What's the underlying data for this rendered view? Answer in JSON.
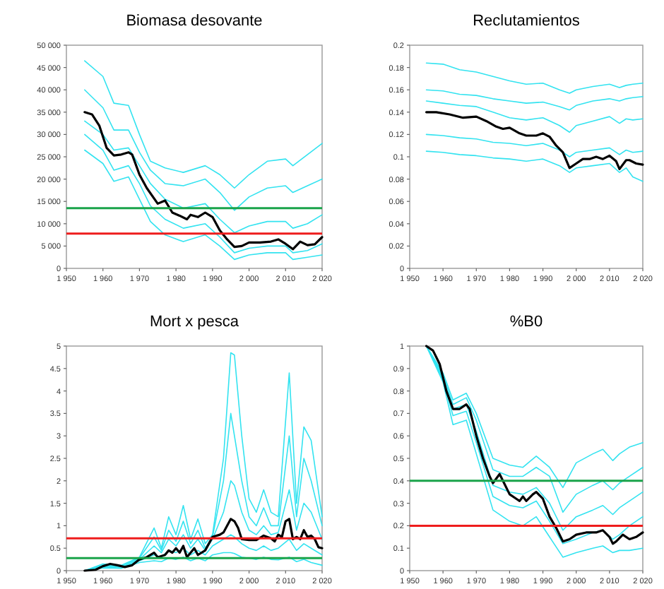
{
  "chart_data": [
    {
      "type": "line",
      "title": "Biomasa desovante",
      "xlim": [
        1950,
        2020
      ],
      "ylim": [
        0,
        50000
      ],
      "xticks": [
        {
          "value": 1950,
          "label": "1 950"
        },
        {
          "value": 1960,
          "label": "1 960"
        },
        {
          "value": 1970,
          "label": "1 970"
        },
        {
          "value": 1980,
          "label": "1 980"
        },
        {
          "value": 1990,
          "label": "1 990"
        },
        {
          "value": 2000,
          "label": "2 000"
        },
        {
          "value": 2010,
          "label": "2 010"
        },
        {
          "value": 2020,
          "label": "2 020"
        }
      ],
      "yticks": [
        0,
        {
          "value": 5000,
          "label": "5 000"
        },
        {
          "value": 10000,
          "label": "10 000"
        },
        {
          "value": 15000,
          "label": "15 000"
        },
        {
          "value": 20000,
          "label": "20 000"
        },
        {
          "value": 25000,
          "label": "25 000"
        },
        {
          "value": 30000,
          "label": "30 000"
        },
        {
          "value": 35000,
          "label": "35 000"
        },
        {
          "value": 40000,
          "label": "40 000"
        },
        {
          "value": 45000,
          "label": "45 000"
        },
        {
          "value": 50000,
          "label": "50 000"
        }
      ],
      "x": [
        1955,
        1960,
        1963,
        1967,
        1970,
        1973,
        1977,
        1982,
        1988,
        1992,
        1996,
        2000,
        2005,
        2010,
        2012,
        2016,
        2020
      ],
      "series": [
        {
          "color": "#33e3f0",
          "values": [
            46500,
            43000,
            37000,
            36500,
            30000,
            24000,
            22500,
            21500,
            23000,
            21000,
            18000,
            21000,
            24000,
            24500,
            23000,
            25500,
            28000
          ]
        },
        {
          "color": "#33e3f0",
          "values": [
            40000,
            36000,
            31000,
            31000,
            26000,
            22000,
            19000,
            18500,
            20000,
            17000,
            13000,
            16000,
            18000,
            18500,
            17000,
            18500,
            20000
          ]
        },
        {
          "color": "#33e3f0",
          "values": [
            33000,
            30000,
            26500,
            27000,
            23000,
            19000,
            15500,
            13500,
            14500,
            11000,
            8000,
            9500,
            10500,
            10500,
            9000,
            10000,
            12000
          ]
        },
        {
          "color": "#33e3f0",
          "values": [
            30000,
            26500,
            22000,
            23000,
            19000,
            14000,
            11000,
            9000,
            10000,
            7000,
            3500,
            4500,
            5000,
            5000,
            3500,
            4000,
            5500
          ]
        },
        {
          "color": "#33e3f0",
          "values": [
            26500,
            23500,
            19500,
            20500,
            15500,
            10500,
            7500,
            6000,
            7500,
            5000,
            2000,
            3000,
            3500,
            3500,
            2000,
            2500,
            3000
          ]
        },
        {
          "color": "#000000",
          "x": [
            1955,
            1957,
            1959,
            1961,
            1963,
            1965,
            1967,
            1968,
            1970,
            1972,
            1975,
            1977,
            1979,
            1981,
            1983,
            1984,
            1986,
            1988,
            1990,
            1992,
            1994,
            1996,
            1998,
            2000,
            2003,
            2006,
            2008,
            2010,
            2012,
            2014,
            2016,
            2018,
            2020
          ],
          "values": [
            35000,
            34500,
            32000,
            27000,
            25300,
            25500,
            26000,
            25500,
            21000,
            18000,
            14500,
            15200,
            12500,
            11800,
            11000,
            12000,
            11500,
            12500,
            11500,
            8500,
            6500,
            4800,
            5000,
            5800,
            5800,
            6000,
            6500,
            5500,
            4300,
            6000,
            5200,
            5400,
            7000
          ]
        }
      ],
      "ref_lines": [
        {
          "axis": "y",
          "value": 13500,
          "color": "#1aa34a"
        },
        {
          "axis": "y",
          "value": 7800,
          "color": "#ee1c1c"
        }
      ]
    },
    {
      "type": "line",
      "title": "Reclutamientos",
      "xlim": [
        1950,
        2020
      ],
      "ylim": [
        0,
        0.2
      ],
      "xticks": [
        {
          "value": 1950,
          "label": "1 950"
        },
        {
          "value": 1960,
          "label": "1 960"
        },
        {
          "value": 1970,
          "label": "1 970"
        },
        {
          "value": 1980,
          "label": "1 980"
        },
        {
          "value": 1990,
          "label": "1 990"
        },
        {
          "value": 2000,
          "label": "2 000"
        },
        {
          "value": 2010,
          "label": "2 010"
        },
        {
          "value": 2020,
          "label": "2 020"
        }
      ],
      "yticks": [
        0,
        0.02,
        0.04,
        0.06,
        0.08,
        0.1,
        0.12,
        0.14,
        0.16,
        0.18,
        0.2
      ],
      "x": [
        1955,
        1960,
        1965,
        1970,
        1975,
        1980,
        1985,
        1990,
        1995,
        1998,
        2000,
        2005,
        2010,
        2013,
        2015,
        2017,
        2020
      ],
      "series": [
        {
          "color": "#33e3f0",
          "values": [
            0.184,
            0.183,
            0.178,
            0.176,
            0.172,
            0.168,
            0.165,
            0.166,
            0.16,
            0.157,
            0.16,
            0.163,
            0.165,
            0.162,
            0.164,
            0.165,
            0.166
          ]
        },
        {
          "color": "#33e3f0",
          "values": [
            0.16,
            0.159,
            0.156,
            0.155,
            0.152,
            0.15,
            0.148,
            0.149,
            0.145,
            0.142,
            0.146,
            0.15,
            0.152,
            0.15,
            0.152,
            0.153,
            0.154
          ]
        },
        {
          "color": "#33e3f0",
          "values": [
            0.15,
            0.148,
            0.146,
            0.145,
            0.14,
            0.135,
            0.133,
            0.135,
            0.128,
            0.122,
            0.128,
            0.132,
            0.136,
            0.13,
            0.134,
            0.133,
            0.134
          ]
        },
        {
          "color": "#33e3f0",
          "values": [
            0.12,
            0.119,
            0.117,
            0.116,
            0.113,
            0.112,
            0.11,
            0.112,
            0.106,
            0.1,
            0.104,
            0.106,
            0.108,
            0.102,
            0.106,
            0.104,
            0.105
          ]
        },
        {
          "color": "#33e3f0",
          "values": [
            0.105,
            0.104,
            0.102,
            0.101,
            0.099,
            0.098,
            0.096,
            0.098,
            0.092,
            0.086,
            0.09,
            0.092,
            0.094,
            0.086,
            0.09,
            0.082,
            0.078
          ]
        },
        {
          "color": "#000000",
          "x": [
            1955,
            1958,
            1962,
            1966,
            1970,
            1973,
            1976,
            1978,
            1980,
            1983,
            1985,
            1988,
            1990,
            1992,
            1994,
            1996,
            1998,
            2000,
            2002,
            2004,
            2006,
            2008,
            2010,
            2012,
            2013,
            2015,
            2016,
            2018,
            2020
          ],
          "values": [
            0.14,
            0.14,
            0.138,
            0.135,
            0.136,
            0.132,
            0.127,
            0.125,
            0.126,
            0.121,
            0.119,
            0.119,
            0.121,
            0.118,
            0.11,
            0.104,
            0.09,
            0.094,
            0.098,
            0.098,
            0.1,
            0.098,
            0.101,
            0.096,
            0.089,
            0.097,
            0.097,
            0.094,
            0.093
          ]
        }
      ]
    },
    {
      "type": "line",
      "title": "Mort x pesca",
      "xlim": [
        1950,
        2020
      ],
      "ylim": [
        0,
        5
      ],
      "xticks": [
        {
          "value": 1950,
          "label": "1 950"
        },
        {
          "value": 1960,
          "label": "1 960"
        },
        {
          "value": 1970,
          "label": "1 970"
        },
        {
          "value": 1980,
          "label": "1 980"
        },
        {
          "value": 1990,
          "label": "1 990"
        },
        {
          "value": 2000,
          "label": "2 000"
        },
        {
          "value": 2010,
          "label": "2 010"
        },
        {
          "value": 2020,
          "label": "2 020"
        }
      ],
      "yticks": [
        0,
        0.5,
        1,
        1.5,
        2,
        2.5,
        3,
        3.5,
        4,
        4.5,
        5
      ],
      "x": [
        1955,
        1960,
        1965,
        1970,
        1974,
        1976,
        1978,
        1980,
        1982,
        1984,
        1986,
        1988,
        1990,
        1993,
        1995,
        1996,
        1998,
        2000,
        2002,
        2004,
        2006,
        2008,
        2011,
        2013,
        2015,
        2017,
        2020
      ],
      "series": [
        {
          "color": "#33e3f0",
          "values": [
            0,
            0.15,
            0.12,
            0.3,
            0.95,
            0.5,
            1.2,
            0.8,
            1.45,
            0.7,
            1.15,
            0.6,
            0.8,
            2.5,
            4.85,
            4.8,
            3,
            1.6,
            1.3,
            1.8,
            1.3,
            1.2,
            4.4,
            1.5,
            3.2,
            2.9,
            1.2
          ]
        },
        {
          "color": "#33e3f0",
          "values": [
            0,
            0.12,
            0.1,
            0.28,
            0.75,
            0.45,
            0.9,
            0.65,
            1.1,
            0.6,
            0.9,
            0.5,
            0.75,
            2,
            3.5,
            3,
            2,
            1.2,
            1,
            1.4,
            1,
            1,
            3,
            1.2,
            2.5,
            2,
            1
          ]
        },
        {
          "color": "#33e3f0",
          "values": [
            0,
            0.1,
            0.08,
            0.25,
            0.55,
            0.4,
            0.7,
            0.55,
            0.8,
            0.5,
            0.7,
            0.45,
            0.7,
            1.3,
            2,
            1.9,
            1.3,
            0.9,
            0.8,
            1,
            0.8,
            0.85,
            1.8,
            0.9,
            1.5,
            1.3,
            0.7
          ]
        },
        {
          "color": "#33e3f0",
          "values": [
            0,
            0.08,
            0.06,
            0.22,
            0.35,
            0.3,
            0.45,
            0.4,
            0.5,
            0.35,
            0.45,
            0.35,
            0.55,
            0.7,
            0.8,
            0.75,
            0.6,
            0.5,
            0.45,
            0.55,
            0.45,
            0.5,
            0.7,
            0.45,
            0.6,
            0.5,
            0.35
          ]
        },
        {
          "color": "#33e3f0",
          "values": [
            0,
            0.06,
            0.05,
            0.18,
            0.22,
            0.2,
            0.28,
            0.25,
            0.3,
            0.22,
            0.28,
            0.22,
            0.35,
            0.4,
            0.4,
            0.38,
            0.3,
            0.28,
            0.25,
            0.3,
            0.25,
            0.24,
            0.3,
            0.2,
            0.25,
            0.18,
            0.12
          ]
        },
        {
          "color": "#000000",
          "x": [
            1955,
            1958,
            1960,
            1962,
            1964,
            1966,
            1968,
            1970,
            1972,
            1974,
            1975,
            1977,
            1978,
            1979,
            1980,
            1981,
            1982,
            1983,
            1985,
            1986,
            1988,
            1990,
            1992,
            1993,
            1995,
            1996,
            1997,
            1998,
            2000,
            2002,
            2004,
            2006,
            2007,
            2008,
            2009,
            2010,
            2011,
            2012,
            2013,
            2014,
            2015,
            2016,
            2017,
            2018,
            2019,
            2020
          ],
          "values": [
            0,
            0.02,
            0.1,
            0.15,
            0.12,
            0.08,
            0.12,
            0.25,
            0.3,
            0.4,
            0.3,
            0.35,
            0.45,
            0.4,
            0.5,
            0.4,
            0.55,
            0.3,
            0.5,
            0.35,
            0.45,
            0.75,
            0.8,
            0.85,
            1.15,
            1.1,
            0.95,
            0.7,
            0.68,
            0.68,
            0.78,
            0.72,
            0.65,
            0.8,
            0.75,
            1.1,
            1.15,
            0.7,
            0.75,
            0.7,
            0.9,
            0.75,
            0.78,
            0.7,
            0.52,
            0.5
          ]
        }
      ],
      "ref_lines": [
        {
          "axis": "y",
          "value": 0.72,
          "color": "#ee1c1c"
        },
        {
          "axis": "y",
          "value": 0.28,
          "color": "#1aa34a"
        }
      ]
    },
    {
      "type": "line",
      "title": "%B0",
      "xlim": [
        1950,
        2020
      ],
      "ylim": [
        0,
        1
      ],
      "xticks": [
        {
          "value": 1950,
          "label": "1 950"
        },
        {
          "value": 1960,
          "label": "1 960"
        },
        {
          "value": 1970,
          "label": "1 970"
        },
        {
          "value": 1980,
          "label": "1 980"
        },
        {
          "value": 1990,
          "label": "1 990"
        },
        {
          "value": 2000,
          "label": "2 000"
        },
        {
          "value": 2010,
          "label": "2 010"
        },
        {
          "value": 2020,
          "label": "2 020"
        }
      ],
      "yticks": [
        0,
        0.1,
        0.2,
        0.3,
        0.4,
        0.5,
        0.6,
        0.7,
        0.8,
        0.9,
        1
      ],
      "x": [
        1955,
        1960,
        1963,
        1967,
        1970,
        1975,
        1980,
        1984,
        1988,
        1992,
        1996,
        2000,
        2005,
        2008,
        2011,
        2013,
        2016,
        2020
      ],
      "series": [
        {
          "color": "#33e3f0",
          "values": [
            1,
            0.88,
            0.76,
            0.79,
            0.7,
            0.5,
            0.47,
            0.46,
            0.51,
            0.46,
            0.37,
            0.48,
            0.52,
            0.54,
            0.49,
            0.52,
            0.55,
            0.57
          ]
        },
        {
          "color": "#33e3f0",
          "values": [
            1,
            0.87,
            0.74,
            0.77,
            0.67,
            0.45,
            0.42,
            0.42,
            0.46,
            0.42,
            0.26,
            0.34,
            0.38,
            0.4,
            0.36,
            0.39,
            0.42,
            0.46
          ]
        },
        {
          "color": "#33e3f0",
          "values": [
            1,
            0.86,
            0.72,
            0.74,
            0.62,
            0.38,
            0.35,
            0.34,
            0.37,
            0.3,
            0.18,
            0.24,
            0.27,
            0.29,
            0.25,
            0.28,
            0.31,
            0.35
          ]
        },
        {
          "color": "#33e3f0",
          "values": [
            1,
            0.85,
            0.69,
            0.71,
            0.57,
            0.33,
            0.29,
            0.28,
            0.31,
            0.22,
            0.12,
            0.14,
            0.17,
            0.18,
            0.14,
            0.16,
            0.2,
            0.24
          ]
        },
        {
          "color": "#33e3f0",
          "values": [
            1,
            0.84,
            0.65,
            0.67,
            0.52,
            0.27,
            0.22,
            0.2,
            0.24,
            0.15,
            0.06,
            0.08,
            0.1,
            0.11,
            0.08,
            0.09,
            0.09,
            0.1
          ]
        },
        {
          "color": "#000000",
          "x": [
            1955,
            1957,
            1959,
            1961,
            1963,
            1965,
            1967,
            1968,
            1970,
            1972,
            1974,
            1975,
            1977,
            1978,
            1980,
            1982,
            1983,
            1984,
            1985,
            1987,
            1988,
            1990,
            1992,
            1994,
            1996,
            1998,
            2000,
            2003,
            2006,
            2008,
            2010,
            2011,
            2012,
            2014,
            2016,
            2018,
            2020
          ],
          "values": [
            1,
            0.98,
            0.92,
            0.8,
            0.72,
            0.72,
            0.74,
            0.72,
            0.6,
            0.5,
            0.42,
            0.39,
            0.43,
            0.4,
            0.34,
            0.32,
            0.31,
            0.33,
            0.31,
            0.34,
            0.35,
            0.32,
            0.24,
            0.19,
            0.13,
            0.14,
            0.16,
            0.17,
            0.17,
            0.18,
            0.15,
            0.12,
            0.13,
            0.16,
            0.14,
            0.15,
            0.17
          ]
        }
      ],
      "ref_lines": [
        {
          "axis": "y",
          "value": 0.4,
          "color": "#1aa34a"
        },
        {
          "axis": "y",
          "value": 0.2,
          "color": "#ee1c1c"
        }
      ]
    }
  ]
}
